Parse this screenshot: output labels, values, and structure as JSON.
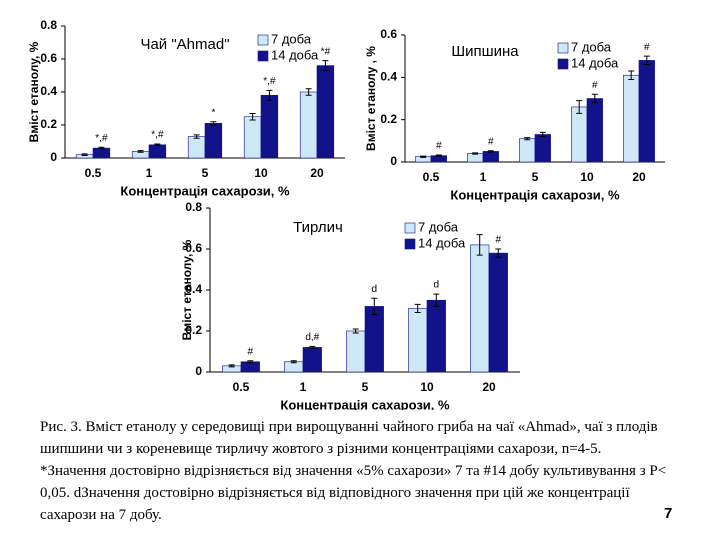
{
  "chart_data": [
    {
      "type": "bar",
      "title": "Чай \"Ahmad\"",
      "ylabel": "Вміст етанолу, %",
      "xlabel": "Концентрація сахарози, %",
      "categories": [
        "0.5",
        "1",
        "5",
        "10",
        "20"
      ],
      "series": [
        {
          "name": "7 доба",
          "color": "#cfe8f8",
          "values": [
            0.02,
            0.04,
            0.13,
            0.25,
            0.4
          ],
          "errors": [
            0.005,
            0.005,
            0.01,
            0.02,
            0.02
          ]
        },
        {
          "name": "14 доба",
          "color": "#12128a",
          "values": [
            0.06,
            0.08,
            0.21,
            0.38,
            0.56
          ],
          "errors": [
            0.005,
            0.005,
            0.01,
            0.03,
            0.03
          ],
          "annotations": [
            "*,#",
            "*,#",
            "*",
            "*,#",
            "*#"
          ]
        }
      ],
      "ylim": [
        0,
        0.8
      ],
      "yticks": [
        0,
        0.2,
        0.4,
        0.6,
        0.8
      ]
    },
    {
      "type": "bar",
      "title": "Шипшина",
      "ylabel": "Вміст етанолу , %",
      "xlabel": "Концентрація сахарози, %",
      "categories": [
        "0.5",
        "1",
        "5",
        "10",
        "20"
      ],
      "series": [
        {
          "name": "7 доба",
          "color": "#cfe8f8",
          "values": [
            0.025,
            0.04,
            0.11,
            0.26,
            0.41
          ],
          "errors": [
            0.003,
            0.003,
            0.005,
            0.03,
            0.02
          ]
        },
        {
          "name": "14 доба",
          "color": "#12128a",
          "values": [
            0.03,
            0.05,
            0.13,
            0.3,
            0.48
          ],
          "errors": [
            0.003,
            0.003,
            0.01,
            0.02,
            0.02
          ],
          "annotations": [
            "#",
            "#",
            null,
            "#",
            "#"
          ]
        }
      ],
      "ylim": [
        0,
        0.6
      ],
      "yticks": [
        0,
        0.2,
        0.4,
        0.6
      ]
    },
    {
      "type": "bar",
      "title": "Тирлич",
      "ylabel": "Вміст етанолу, %",
      "xlabel": "Концентрація сахарози, %",
      "categories": [
        "0.5",
        "1",
        "5",
        "10",
        "20"
      ],
      "series": [
        {
          "name": "7 доба",
          "color": "#cfe8f8",
          "values": [
            0.03,
            0.05,
            0.2,
            0.31,
            0.62
          ],
          "errors": [
            0.005,
            0.005,
            0.01,
            0.02,
            0.05
          ]
        },
        {
          "name": "14 доба",
          "color": "#12128a",
          "values": [
            0.05,
            0.12,
            0.32,
            0.35,
            0.58
          ],
          "errors": [
            0.005,
            0.005,
            0.04,
            0.03,
            0.02
          ],
          "annotations": [
            "#",
            "d,#",
            "d",
            "d",
            "#"
          ]
        }
      ],
      "ylim": [
        0,
        0.8
      ],
      "yticks": [
        0,
        0.2,
        0.4,
        0.6,
        0.8
      ]
    }
  ],
  "caption": "Рис. 3. Вміст етанолу у середовищі при вирощуванні чайного гриба на чаї «Ahmad», чаї з плодів шипшини чи з кореневище тирличу жовтого з різними концентраціями сахарози, n=4-5. *Значення достовірно відрізняється від значення «5% сахарози» 7 та #14 добу культивування з Р< 0,05. dЗначення достовірно відрізняється від відповідного значення при цій же концентрації сахарози на 7 добу.",
  "page_number": "7"
}
